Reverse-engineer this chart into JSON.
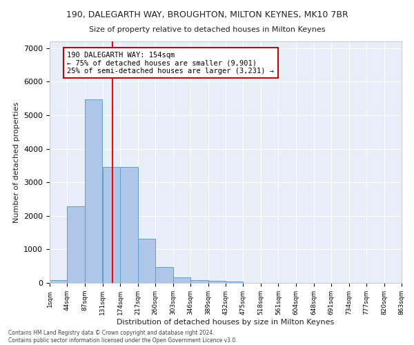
{
  "title": "190, DALEGARTH WAY, BROUGHTON, MILTON KEYNES, MK10 7BR",
  "subtitle": "Size of property relative to detached houses in Milton Keynes",
  "xlabel": "Distribution of detached houses by size in Milton Keynes",
  "ylabel": "Number of detached properties",
  "bar_color": "#aec6e8",
  "bar_edge_color": "#5a9fd4",
  "bar_left_edges": [
    1,
    44,
    87,
    131,
    174,
    217,
    260,
    303,
    346,
    389,
    432,
    475,
    518,
    561,
    604,
    648,
    691,
    734,
    777,
    820
  ],
  "bar_heights": [
    75,
    2280,
    5470,
    3450,
    3450,
    1320,
    480,
    155,
    80,
    55,
    40,
    0,
    0,
    0,
    0,
    0,
    0,
    0,
    0,
    0
  ],
  "bin_width": 43,
  "xtick_labels": [
    "1sqm",
    "44sqm",
    "87sqm",
    "131sqm",
    "174sqm",
    "217sqm",
    "260sqm",
    "303sqm",
    "346sqm",
    "389sqm",
    "432sqm",
    "475sqm",
    "518sqm",
    "561sqm",
    "604sqm",
    "648sqm",
    "691sqm",
    "734sqm",
    "777sqm",
    "820sqm",
    "863sqm"
  ],
  "ylim": [
    0,
    7200
  ],
  "yticks": [
    0,
    1000,
    2000,
    3000,
    4000,
    5000,
    6000,
    7000
  ],
  "red_line_x": 154,
  "annotation_text": "190 DALEGARTH WAY: 154sqm\n← 75% of detached houses are smaller (9,901)\n25% of semi-detached houses are larger (3,231) →",
  "annotation_box_color": "#ffffff",
  "annotation_box_edge_color": "#cc0000",
  "footer_text": "Contains HM Land Registry data © Crown copyright and database right 2024.\nContains public sector information licensed under the Open Government Licence v3.0.",
  "background_color": "#e8eef8",
  "grid_color": "#ffffff",
  "fig_bg_color": "#ffffff"
}
